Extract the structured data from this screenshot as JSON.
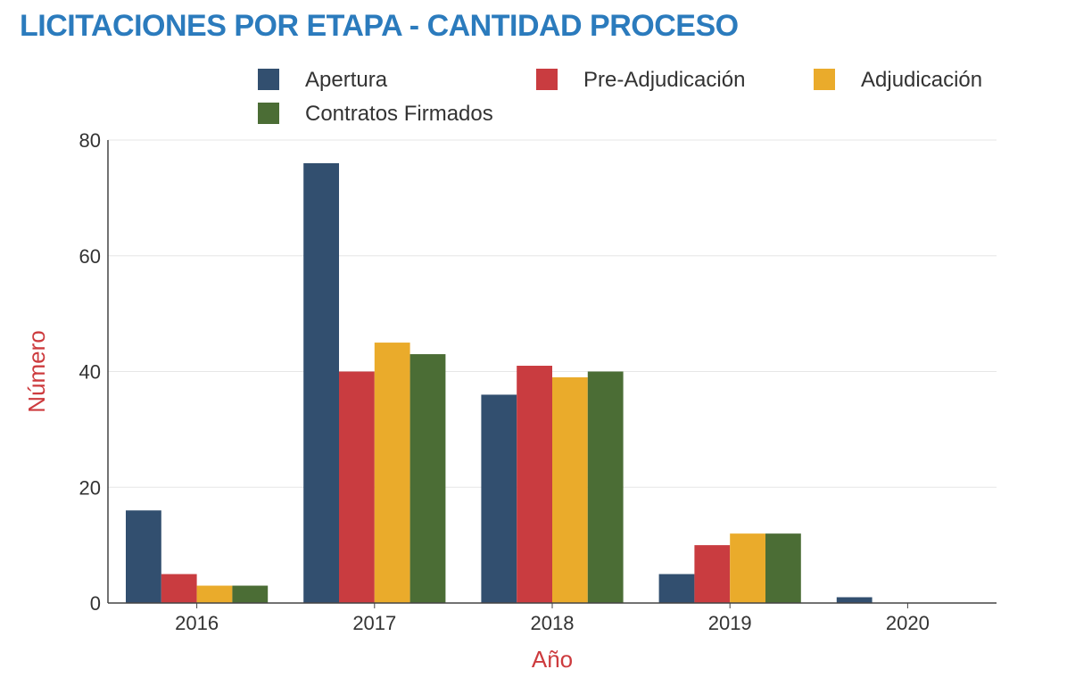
{
  "chart_data": {
    "type": "bar",
    "title": "LICITACIONES POR ETAPA - CANTIDAD PROCESO",
    "xlabel": "Año",
    "ylabel": "Número",
    "categories": [
      "2016",
      "2017",
      "2018",
      "2019",
      "2020"
    ],
    "series": [
      {
        "name": "Apertura",
        "color": "#324f6f",
        "values": [
          16,
          76,
          36,
          5,
          1
        ]
      },
      {
        "name": "Pre-Adjudicación",
        "color": "#c93c40",
        "values": [
          5,
          40,
          41,
          10,
          0
        ]
      },
      {
        "name": "Adjudicación",
        "color": "#eaab2b",
        "values": [
          3,
          45,
          39,
          12,
          0
        ]
      },
      {
        "name": "Contratos Firmados",
        "color": "#4b6d35",
        "values": [
          3,
          43,
          40,
          12,
          0
        ]
      }
    ],
    "ylim": [
      0,
      80
    ],
    "yticks": [
      "0",
      "20",
      "40",
      "60",
      "80"
    ],
    "grid": true,
    "legend_position": "top",
    "title_color": "#2b7bbd",
    "axis_title_color": "#cd3b3e"
  }
}
